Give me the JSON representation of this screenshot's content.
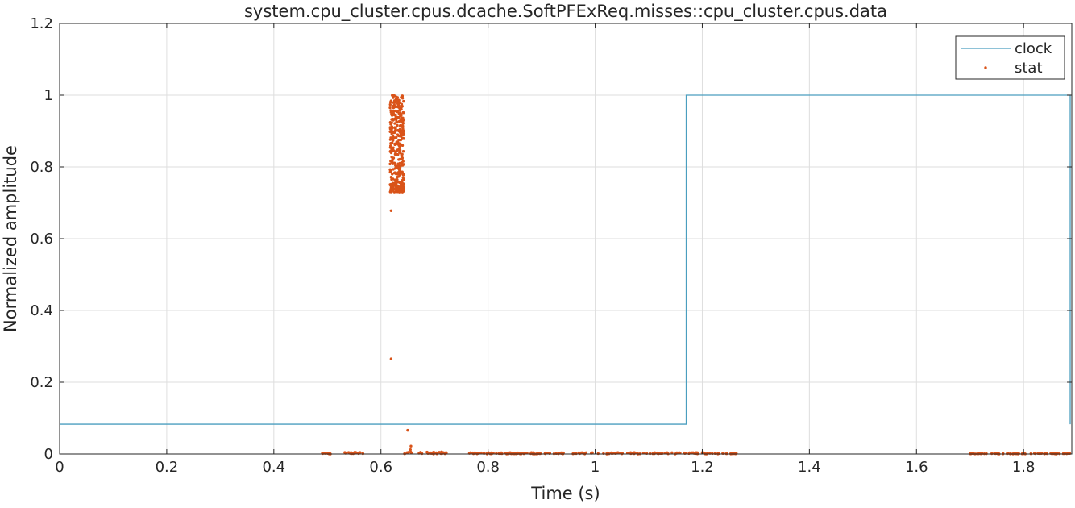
{
  "chart_data": {
    "type": "line",
    "title": "system.cpu_cluster.cpus.dcache.SoftPFExReq.misses::cpu_cluster.cpus.data",
    "xlabel": "Time (s)",
    "ylabel": "Normalized amplitude",
    "xlim": [
      0,
      1.89
    ],
    "ylim": [
      0,
      1.2
    ],
    "xticks": [
      0,
      0.2,
      0.4,
      0.6,
      0.8,
      1,
      1.2,
      1.4,
      1.6,
      1.8
    ],
    "xtick_labels": [
      "0",
      "0.2",
      "0.4",
      "0.6",
      "0.8",
      "1",
      "1.2",
      "1.4",
      "1.6",
      "1.8"
    ],
    "yticks": [
      0,
      0.2,
      0.4,
      0.6,
      0.8,
      1,
      1.2
    ],
    "ytick_labels": [
      "0",
      "0.2",
      "0.4",
      "0.6",
      "0.8",
      "1",
      "1.2"
    ],
    "grid": true,
    "legend_position": "top-right",
    "series": [
      {
        "name": "clock",
        "style": "step-line",
        "color": "#4a9ebf",
        "x": [
          0,
          1.17,
          1.17,
          1.887,
          1.887
        ],
        "y": [
          0.083,
          0.083,
          1.0,
          1.0,
          0.083
        ]
      },
      {
        "name": "stat",
        "style": "points",
        "color": "#d95319",
        "burst": {
          "x_range": [
            0.617,
            0.643
          ],
          "y_range": [
            0.73,
            1.0
          ]
        },
        "outliers": [
          {
            "x": 0.619,
            "y": 0.678
          },
          {
            "x": 0.619,
            "y": 0.265
          },
          {
            "x": 0.65,
            "y": 0.066
          },
          {
            "x": 0.656,
            "y": 0.022
          },
          {
            "x": 0.655,
            "y": 0.012
          }
        ],
        "baseline_clusters": [
          {
            "x_range": [
              0.487,
              0.52
            ],
            "y_max": 0.003
          },
          {
            "x_range": [
              0.53,
              0.567
            ],
            "y_max": 0.005
          },
          {
            "x_range": [
              0.643,
              0.73
            ],
            "y_max": 0.006
          },
          {
            "x_range": [
              0.765,
              1.2
            ],
            "y_max": 0.004
          },
          {
            "x_range": [
              1.2,
              1.265
            ],
            "y_max": 0.002
          },
          {
            "x_range": [
              1.7,
              1.887
            ],
            "y_max": 0.002
          }
        ]
      }
    ]
  },
  "legend": {
    "items": [
      {
        "label": "clock",
        "color": "#4a9ebf"
      },
      {
        "label": "stat",
        "color": "#d95319"
      }
    ]
  }
}
